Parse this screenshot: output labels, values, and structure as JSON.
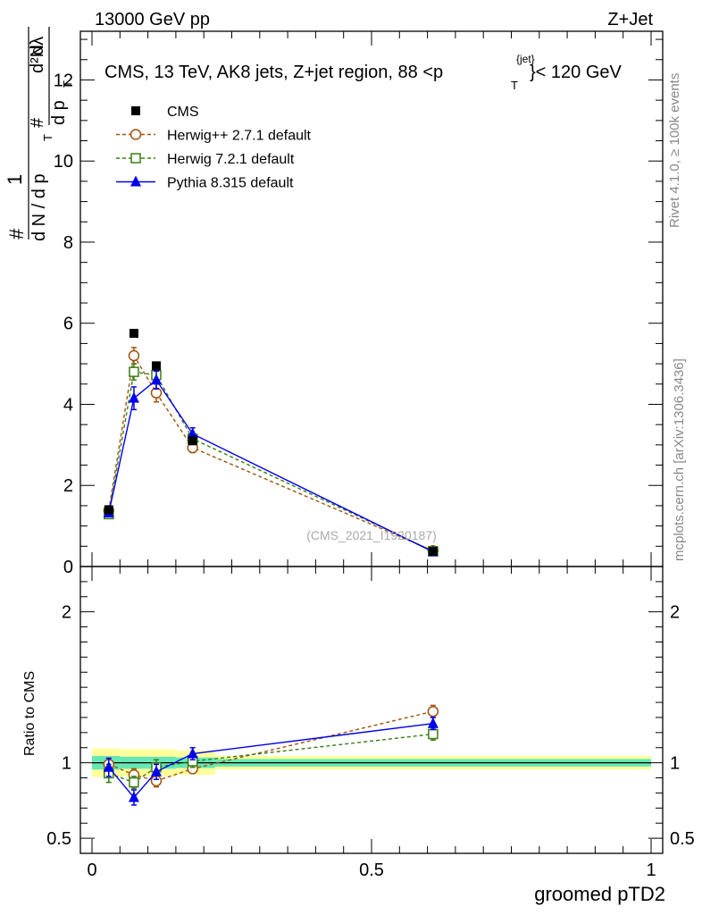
{
  "header": {
    "left": "13000 GeV pp",
    "right": "Z+Jet"
  },
  "side_labels": {
    "rivet": "Rivet 4.1.0, ≥ 100k events",
    "mcplots": "mcplots.cern.ch [arXiv:1306.3436]"
  },
  "chart_data": {
    "type": "line",
    "title": "CMS, 13 TeV, AK8 jets, Z+jet region, 88 <p",
    "title_sup": "{jet}",
    "title_sub": "T",
    "title_tail": "}< 120 GeV",
    "watermark": "(CMS_2021_I1920187)",
    "ylabel_main": {
      "hash1": "#",
      "one": "1",
      "dN": "d N / d p",
      "T": "T",
      "hash2": "#",
      "dpT": "d p",
      "d2N": "d²N",
      "dlambda": "dλ"
    },
    "ylabel_ratio": "Ratio to CMS",
    "xlabel": "groomed pTD2",
    "xlim": [
      -0.01,
      1.0
    ],
    "ylim_main": [
      0,
      13.2
    ],
    "ylim_ratio": [
      0.4,
      2.3
    ],
    "x_ticks": [
      0,
      0.5,
      1
    ],
    "x_tick_labels": [
      "0",
      "0.5",
      "1"
    ],
    "y_ticks_main": [
      0,
      2,
      4,
      6,
      8,
      10,
      12
    ],
    "y_tick_labels_main": [
      "0",
      "2",
      "4",
      "6",
      "8",
      "10",
      "12"
    ],
    "y_ticks_ratio": [
      0.5,
      1,
      2
    ],
    "y_tick_labels_ratio": [
      "0.5",
      "1",
      "2"
    ],
    "x": [
      0.03,
      0.075,
      0.115,
      0.18,
      0.61
    ],
    "cms_bins": [
      [
        0,
        0.05
      ],
      [
        0.05,
        0.1
      ],
      [
        0.1,
        0.15
      ],
      [
        0.15,
        0.22
      ],
      [
        0.22,
        1.0
      ]
    ],
    "ratio_band_inner": [
      0.045,
      0.04,
      0.04,
      0.035,
      0.025
    ],
    "ratio_band_outer": [
      0.095,
      0.09,
      0.09,
      0.08,
      0.045
    ],
    "series": [
      {
        "name": "CMS",
        "color": "#000000",
        "marker": "square-filled",
        "values": [
          1.4,
          5.75,
          4.95,
          3.1,
          0.37
        ],
        "ratio": [
          1.0,
          1.0,
          1.0,
          1.0,
          1.0
        ]
      },
      {
        "name": "Herwig++ 2.7.1 default",
        "color": "#a0520d",
        "marker": "circle-open",
        "dashed": true,
        "values": [
          1.38,
          5.2,
          4.28,
          2.93,
          0.39
        ],
        "errors": [
          0.07,
          0.2,
          0.22,
          0.12,
          0.03
        ],
        "ratio": [
          0.99,
          0.92,
          0.88,
          0.96,
          1.34
        ],
        "ratio_err": [
          0.04,
          0.04,
          0.04,
          0.03,
          0.04
        ]
      },
      {
        "name": "Herwig 7.2.1 default",
        "color": "#3a7d12",
        "marker": "square-open",
        "dashed": true,
        "values": [
          1.29,
          4.8,
          4.72,
          3.15,
          0.38
        ],
        "errors": [
          0.07,
          0.2,
          0.22,
          0.12,
          0.03
        ],
        "ratio": [
          0.93,
          0.87,
          0.97,
          1.01,
          1.19
        ],
        "ratio_err": [
          0.06,
          0.04,
          0.05,
          0.04,
          0.04
        ]
      },
      {
        "name": "Pythia 8.315 default",
        "color": "#0000ee",
        "marker": "triangle-filled",
        "values": [
          1.32,
          4.15,
          4.6,
          3.27,
          0.36
        ],
        "errors": [
          0.08,
          0.28,
          0.22,
          0.15,
          0.03
        ],
        "ratio": [
          0.97,
          0.77,
          0.94,
          1.06,
          1.26
        ],
        "ratio_err": [
          0.06,
          0.05,
          0.05,
          0.04,
          0.04
        ]
      }
    ]
  },
  "colors": {
    "band_inner": "#66e8b4",
    "band_outer": "#ffff9c",
    "ratio_line": "#000000",
    "side_text": "#888888"
  }
}
